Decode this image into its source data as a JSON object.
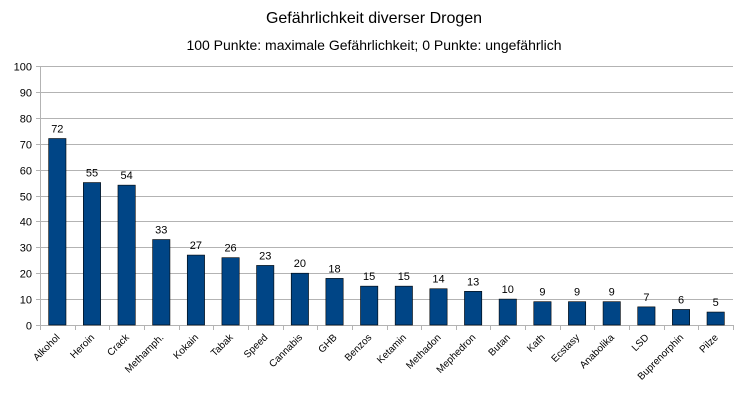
{
  "chart_data": {
    "type": "bar",
    "title": "Gefährlichkeit diverser Drogen",
    "subtitle": "100 Punkte: maximale Gefährlichkeit; 0 Punkte: ungefährlich",
    "categories": [
      "Alkohol",
      "Heroin",
      "Crack",
      "Methamph.",
      "Kokain",
      "Tabak",
      "Speed",
      "Cannabis",
      "GHB",
      "Benzos",
      "Ketamin",
      "Methadon",
      "Mephedron",
      "Butan",
      "Kath",
      "Ecstasy",
      "Anabolika",
      "LSD",
      "Buprenorphin",
      "Pilze"
    ],
    "values": [
      72,
      55,
      54,
      33,
      27,
      26,
      23,
      20,
      18,
      15,
      15,
      14,
      13,
      10,
      9,
      9,
      9,
      7,
      6,
      5
    ],
    "ylim": [
      0,
      100
    ],
    "yticks": [
      0,
      10,
      20,
      30,
      40,
      50,
      60,
      70,
      80,
      90,
      100
    ],
    "grid": true,
    "bar_color": "#004586",
    "grid_color": "#b3b3b3"
  }
}
